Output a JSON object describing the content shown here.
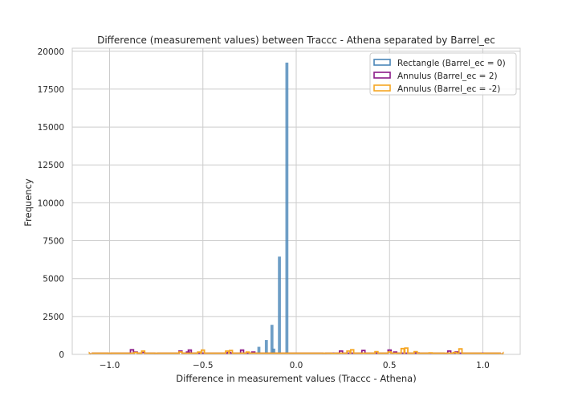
{
  "chart_data": {
    "type": "histogram",
    "title": "Difference (measurement values) between Traccc - Athena separated by Barrel_ec",
    "xlabel": "Difference in measurement values (Traccc - Athena)",
    "ylabel": "Frequency",
    "xlim": [
      -1.2,
      1.2
    ],
    "ylim": [
      0,
      20200
    ],
    "xticks": [
      -1.0,
      -0.5,
      0.0,
      0.5,
      1.0
    ],
    "xtick_labels": [
      "−1.0",
      "−0.5",
      "0.0",
      "0.5",
      "1.0"
    ],
    "yticks": [
      0,
      2500,
      5000,
      7500,
      10000,
      12500,
      15000,
      17500,
      20000
    ],
    "ytick_labels": [
      "0",
      "2500",
      "5000",
      "7500",
      "10000",
      "12500",
      "15000",
      "17500",
      "20000"
    ],
    "grid": true,
    "legend_position": "top-right",
    "series": [
      {
        "name": "Rectangle (Barrel_ec = 0)",
        "style": "filled",
        "color": "#4a86b8",
        "bin_width": 0.016,
        "x": [
          -0.23,
          -0.2,
          -0.16,
          -0.13,
          -0.12,
          -0.09,
          -0.05
        ],
        "values": [
          150,
          500,
          950,
          1950,
          380,
          6450,
          19250
        ]
      },
      {
        "name": "Annulus (Barrel_ec = 2)",
        "style": "step",
        "color": "#8b1a89",
        "bin_width": 0.016,
        "x": [
          -1.1,
          -1.0,
          -0.88,
          -0.86,
          -0.82,
          -0.75,
          -0.68,
          -0.62,
          -0.58,
          -0.57,
          -0.42,
          -0.36,
          -0.29,
          -0.23,
          0.15,
          0.24,
          0.36,
          0.5,
          0.53,
          0.65,
          0.8,
          0.82,
          0.86,
          1.1
        ],
        "values": [
          30,
          50,
          300,
          150,
          120,
          60,
          80,
          220,
          150,
          280,
          80,
          120,
          280,
          150,
          40,
          220,
          260,
          280,
          150,
          90,
          60,
          220,
          160,
          30
        ]
      },
      {
        "name": "Annulus (Barrel_ec = -2)",
        "style": "step",
        "color": "#f5a623",
        "bin_width": 0.016,
        "x": [
          -1.1,
          -0.86,
          -0.82,
          -0.72,
          -0.62,
          -0.52,
          -0.5,
          -0.37,
          -0.35,
          -0.26,
          -0.2,
          0.2,
          0.28,
          0.3,
          0.43,
          0.5,
          0.57,
          0.59,
          0.64,
          0.72,
          0.85,
          0.88,
          1.0,
          1.1
        ],
        "values": [
          20,
          120,
          220,
          80,
          160,
          150,
          280,
          220,
          260,
          150,
          80,
          60,
          220,
          300,
          180,
          160,
          380,
          420,
          180,
          100,
          120,
          360,
          60,
          20
        ]
      }
    ]
  }
}
